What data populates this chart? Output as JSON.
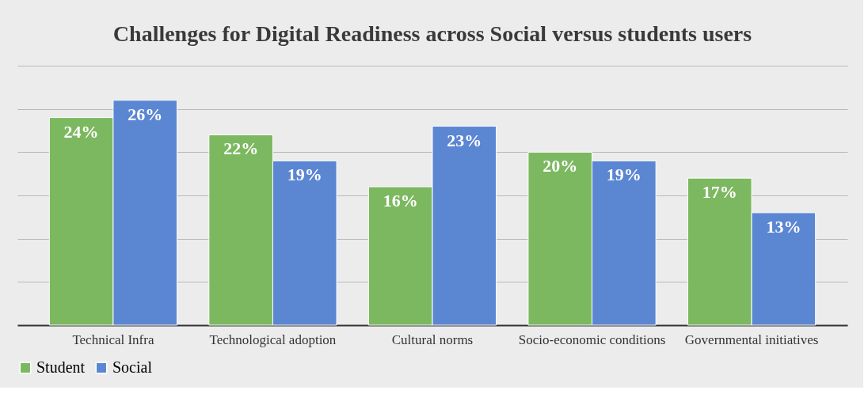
{
  "chart_data": {
    "type": "bar",
    "title": "Challenges for Digital Readiness across Social versus students users",
    "categories": [
      "Technical Infra",
      "Technological adoption",
      "Cultural norms",
      "Socio-economic conditions",
      "Governmental initiatives"
    ],
    "series": [
      {
        "name": "Student",
        "color": "#7cb860",
        "values": [
          24,
          22,
          16,
          20,
          17
        ],
        "value_labels": [
          "24%",
          "22%",
          "16%",
          "20%",
          "17%"
        ]
      },
      {
        "name": "Social",
        "color": "#5b86d2",
        "values": [
          26,
          19,
          23,
          19,
          13
        ],
        "value_labels": [
          "26%",
          "19%",
          "23%",
          "19%",
          "13%"
        ]
      }
    ],
    "ylim": [
      0,
      30
    ],
    "yticks": [
      {
        "value": 0,
        "label": null
      },
      {
        "value": 5,
        "label": null
      },
      {
        "value": 10,
        "label": null
      },
      {
        "value": 15,
        "label": null
      },
      {
        "value": 20,
        "label": null
      },
      {
        "value": 25,
        "label": null
      },
      {
        "value": 30,
        "label": null
      }
    ],
    "grid": "y",
    "legend": "bottom"
  }
}
